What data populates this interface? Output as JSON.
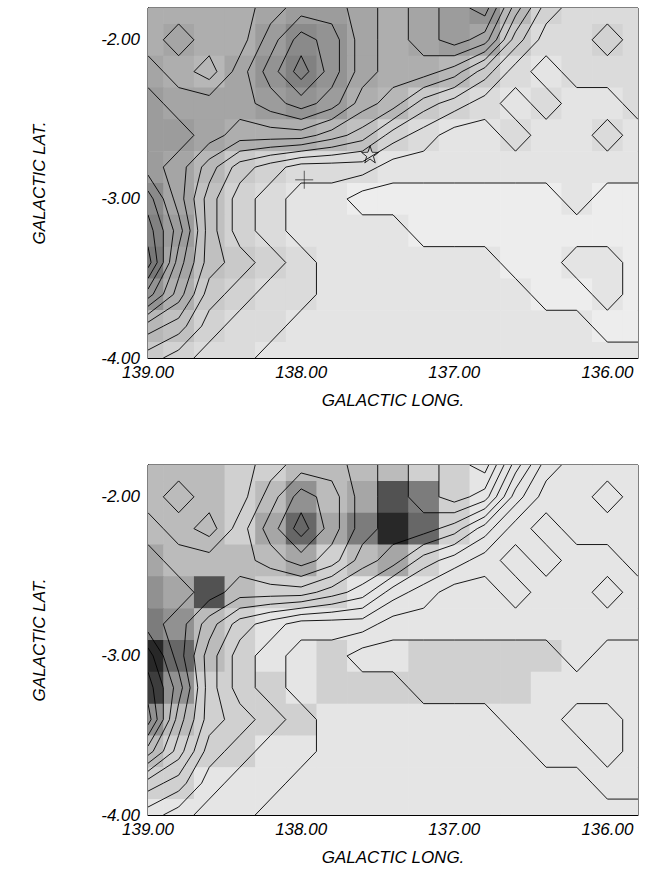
{
  "chart_data": [
    {
      "type": "contour",
      "xlabel": "GALACTIC LONG.",
      "ylabel": "GALACTIC LAT.",
      "xlim": [
        139.0,
        135.8
      ],
      "ylim": [
        -4.0,
        -1.8
      ],
      "xticks": [
        {
          "value": 139,
          "label": "139.00"
        },
        {
          "value": 138,
          "label": "138.00"
        },
        {
          "value": 137,
          "label": "137.00"
        },
        {
          "value": 136,
          "label": "136.00"
        }
      ],
      "yticks": [
        {
          "value": -2,
          "label": "-2.00"
        },
        {
          "value": -3,
          "label": "-3.00"
        },
        {
          "value": -4,
          "label": "-4.00"
        }
      ],
      "x": [
        139.0,
        138.8,
        138.6,
        138.4,
        138.2,
        138.0,
        137.8,
        137.6,
        137.4,
        137.2,
        137.0,
        136.8,
        136.6,
        136.4,
        136.2,
        136.0,
        135.8
      ],
      "y": [
        -1.8,
        -2.0,
        -2.2,
        -2.4,
        -2.6,
        -2.8,
        -3.0,
        -3.2,
        -3.4,
        -3.6,
        -3.8,
        -4.0
      ],
      "cells": [
        [
          8,
          8,
          8,
          8,
          9,
          10,
          10,
          9,
          8,
          9,
          10,
          11,
          7,
          4,
          3,
          3,
          3
        ],
        [
          8,
          9,
          8,
          8,
          10,
          12,
          11,
          9,
          8,
          9,
          10,
          9,
          5,
          3,
          3,
          4,
          3
        ],
        [
          9,
          8,
          7,
          9,
          11,
          13,
          11,
          9,
          8,
          8,
          7,
          5,
          3,
          2,
          3,
          3,
          3
        ],
        [
          10,
          9,
          9,
          9,
          10,
          11,
          10,
          8,
          7,
          5,
          4,
          3,
          2,
          3,
          2,
          2,
          3
        ],
        [
          10,
          10,
          9,
          8,
          8,
          8,
          7,
          6,
          4,
          3,
          2,
          2,
          3,
          2,
          2,
          3,
          2
        ],
        [
          10,
          9,
          7,
          5,
          4,
          3,
          3,
          3,
          2,
          2,
          2,
          2,
          2,
          2,
          2,
          2,
          2
        ],
        [
          12,
          9,
          6,
          4,
          3,
          2,
          2,
          1,
          1,
          1,
          1,
          1,
          1,
          1,
          2,
          1,
          1
        ],
        [
          13,
          10,
          6,
          4,
          3,
          2,
          2,
          2,
          2,
          1,
          1,
          1,
          1,
          1,
          1,
          1,
          1
        ],
        [
          14,
          9,
          6,
          5,
          4,
          3,
          2,
          2,
          2,
          2,
          2,
          2,
          1,
          1,
          2,
          2,
          1
        ],
        [
          11,
          8,
          5,
          4,
          3,
          3,
          2,
          2,
          2,
          2,
          2,
          2,
          2,
          1,
          1,
          2,
          1
        ],
        [
          7,
          6,
          4,
          3,
          3,
          2,
          2,
          2,
          2,
          2,
          2,
          2,
          2,
          2,
          2,
          1,
          1
        ],
        [
          5,
          4,
          3,
          3,
          2,
          2,
          2,
          2,
          2,
          2,
          2,
          2,
          2,
          2,
          2,
          2,
          2
        ]
      ],
      "contour_cells": [
        [
          8,
          8,
          8,
          8,
          9,
          10,
          10,
          9,
          8,
          9,
          10,
          11,
          7,
          4,
          3,
          3,
          3
        ],
        [
          8,
          9,
          8,
          8,
          10,
          12,
          11,
          9,
          8,
          9,
          10,
          9,
          5,
          3,
          3,
          4,
          3
        ],
        [
          9,
          8,
          7,
          9,
          11,
          13,
          11,
          9,
          8,
          8,
          7,
          5,
          3,
          2,
          3,
          3,
          3
        ],
        [
          10,
          9,
          9,
          9,
          10,
          11,
          10,
          8,
          7,
          5,
          4,
          3,
          2,
          3,
          2,
          2,
          3
        ],
        [
          10,
          10,
          9,
          8,
          8,
          8,
          7,
          6,
          4,
          3,
          2,
          2,
          3,
          2,
          2,
          3,
          2
        ],
        [
          10,
          9,
          7,
          5,
          4,
          3,
          3,
          3,
          2,
          2,
          2,
          2,
          2,
          2,
          2,
          2,
          2
        ],
        [
          12,
          9,
          6,
          4,
          3,
          2,
          2,
          1,
          1,
          1,
          1,
          1,
          1,
          1,
          2,
          1,
          1
        ],
        [
          13,
          10,
          6,
          4,
          3,
          2,
          2,
          2,
          2,
          1,
          1,
          1,
          1,
          1,
          1,
          1,
          1
        ],
        [
          14,
          9,
          6,
          5,
          4,
          3,
          2,
          2,
          2,
          2,
          2,
          2,
          1,
          1,
          2,
          2,
          1
        ],
        [
          11,
          8,
          5,
          4,
          3,
          3,
          2,
          2,
          2,
          2,
          2,
          2,
          2,
          1,
          1,
          2,
          1
        ],
        [
          7,
          6,
          4,
          3,
          3,
          2,
          2,
          2,
          2,
          2,
          2,
          2,
          2,
          2,
          2,
          1,
          1
        ],
        [
          5,
          4,
          3,
          3,
          2,
          2,
          2,
          2,
          2,
          2,
          2,
          2,
          2,
          2,
          2,
          2,
          2
        ]
      ],
      "contour_levels": [
        1.5,
        2.5,
        3.5,
        4.5,
        5.5,
        6.5,
        7.5,
        8.5,
        9.5,
        10.5,
        11.5,
        12.5,
        13.5
      ],
      "color_range": [
        0,
        14
      ],
      "markers": [
        {
          "x": 137.55,
          "y": -2.72,
          "marker": "star"
        },
        {
          "x": 137.98,
          "y": -2.88,
          "marker": "cross"
        }
      ]
    },
    {
      "type": "contour",
      "xlabel": "GALACTIC LONG.",
      "ylabel": "GALACTIC LAT.",
      "xlim": [
        139.0,
        135.8
      ],
      "ylim": [
        -4.0,
        -1.8
      ],
      "xticks": [
        {
          "value": 139,
          "label": "139.00"
        },
        {
          "value": 138,
          "label": "138.00"
        },
        {
          "value": 137,
          "label": "137.00"
        },
        {
          "value": 136,
          "label": "136.00"
        }
      ],
      "yticks": [
        {
          "value": -2,
          "label": "-2.00"
        },
        {
          "value": -3,
          "label": "-3.00"
        },
        {
          "value": -4,
          "label": "-4.00"
        }
      ],
      "x": [
        139.0,
        138.8,
        138.6,
        138.4,
        138.2,
        138.0,
        137.8,
        137.6,
        137.4,
        137.2,
        137.0,
        136.8,
        136.6,
        136.4,
        136.2,
        136.0,
        135.8
      ],
      "y": [
        -1.8,
        -2.0,
        -2.2,
        -2.4,
        -2.6,
        -2.8,
        -3.0,
        -3.2,
        -3.4,
        -3.6,
        -3.8,
        -4.0
      ],
      "cells": [
        [
          3,
          3,
          3,
          2,
          2,
          3,
          3,
          3,
          3,
          2,
          2,
          1,
          1,
          1,
          1,
          1,
          1
        ],
        [
          3,
          3,
          3,
          2,
          3,
          5,
          3,
          4,
          8,
          6,
          2,
          1,
          1,
          1,
          1,
          1,
          1
        ],
        [
          3,
          3,
          3,
          2,
          4,
          7,
          4,
          6,
          10,
          7,
          2,
          1,
          1,
          1,
          1,
          1,
          1
        ],
        [
          4,
          3,
          3,
          3,
          3,
          4,
          2,
          3,
          4,
          2,
          1,
          1,
          1,
          1,
          1,
          1,
          1
        ],
        [
          5,
          4,
          8,
          3,
          2,
          2,
          2,
          1,
          1,
          1,
          1,
          1,
          1,
          1,
          1,
          1,
          1
        ],
        [
          6,
          5,
          3,
          2,
          1,
          1,
          1,
          1,
          1,
          1,
          1,
          1,
          1,
          1,
          1,
          1,
          1
        ],
        [
          10,
          7,
          3,
          2,
          1,
          1,
          2,
          1,
          1,
          2,
          2,
          2,
          2,
          2,
          1,
          1,
          1
        ],
        [
          9,
          5,
          2,
          2,
          2,
          1,
          2,
          2,
          2,
          2,
          2,
          2,
          2,
          1,
          1,
          1,
          1
        ],
        [
          5,
          3,
          2,
          2,
          2,
          2,
          1,
          1,
          1,
          1,
          1,
          1,
          1,
          1,
          1,
          1,
          1
        ],
        [
          3,
          2,
          2,
          2,
          1,
          1,
          1,
          1,
          1,
          1,
          1,
          1,
          1,
          1,
          1,
          1,
          1
        ],
        [
          2,
          2,
          1,
          1,
          1,
          1,
          1,
          1,
          1,
          1,
          1,
          1,
          1,
          1,
          1,
          1,
          1
        ],
        [
          1,
          1,
          1,
          1,
          1,
          1,
          1,
          1,
          1,
          1,
          1,
          1,
          1,
          1,
          1,
          1,
          1
        ]
      ],
      "contour_cells": [
        [
          8,
          8,
          8,
          8,
          9,
          10,
          10,
          9,
          8,
          9,
          10,
          11,
          7,
          4,
          3,
          3,
          3
        ],
        [
          8,
          9,
          8,
          8,
          10,
          12,
          11,
          9,
          8,
          9,
          10,
          9,
          5,
          3,
          3,
          4,
          3
        ],
        [
          9,
          8,
          7,
          9,
          11,
          13,
          11,
          9,
          8,
          8,
          7,
          5,
          3,
          2,
          3,
          3,
          3
        ],
        [
          10,
          9,
          9,
          9,
          10,
          11,
          10,
          8,
          7,
          5,
          4,
          3,
          2,
          3,
          2,
          2,
          3
        ],
        [
          10,
          10,
          9,
          8,
          8,
          8,
          7,
          6,
          4,
          3,
          2,
          2,
          3,
          2,
          2,
          3,
          2
        ],
        [
          10,
          9,
          7,
          5,
          4,
          3,
          3,
          3,
          2,
          2,
          2,
          2,
          2,
          2,
          2,
          2,
          2
        ],
        [
          12,
          9,
          6,
          4,
          3,
          2,
          2,
          1,
          1,
          1,
          1,
          1,
          1,
          1,
          2,
          1,
          1
        ],
        [
          13,
          10,
          6,
          4,
          3,
          2,
          2,
          2,
          2,
          1,
          1,
          1,
          1,
          1,
          1,
          1,
          1
        ],
        [
          14,
          9,
          6,
          5,
          4,
          3,
          2,
          2,
          2,
          2,
          2,
          2,
          1,
          1,
          2,
          2,
          1
        ],
        [
          11,
          8,
          5,
          4,
          3,
          3,
          2,
          2,
          2,
          2,
          2,
          2,
          2,
          1,
          1,
          2,
          1
        ],
        [
          7,
          6,
          4,
          3,
          3,
          2,
          2,
          2,
          2,
          2,
          2,
          2,
          2,
          2,
          2,
          1,
          1
        ],
        [
          5,
          4,
          3,
          3,
          2,
          2,
          2,
          2,
          2,
          2,
          2,
          2,
          2,
          2,
          2,
          2,
          2
        ]
      ],
      "contour_levels": [
        1.5,
        2.5,
        3.5,
        4.5,
        5.5,
        6.5,
        7.5,
        8.5,
        9.5,
        10.5,
        11.5,
        12.5,
        13.5
      ],
      "color_range": [
        0,
        10
      ]
    }
  ]
}
